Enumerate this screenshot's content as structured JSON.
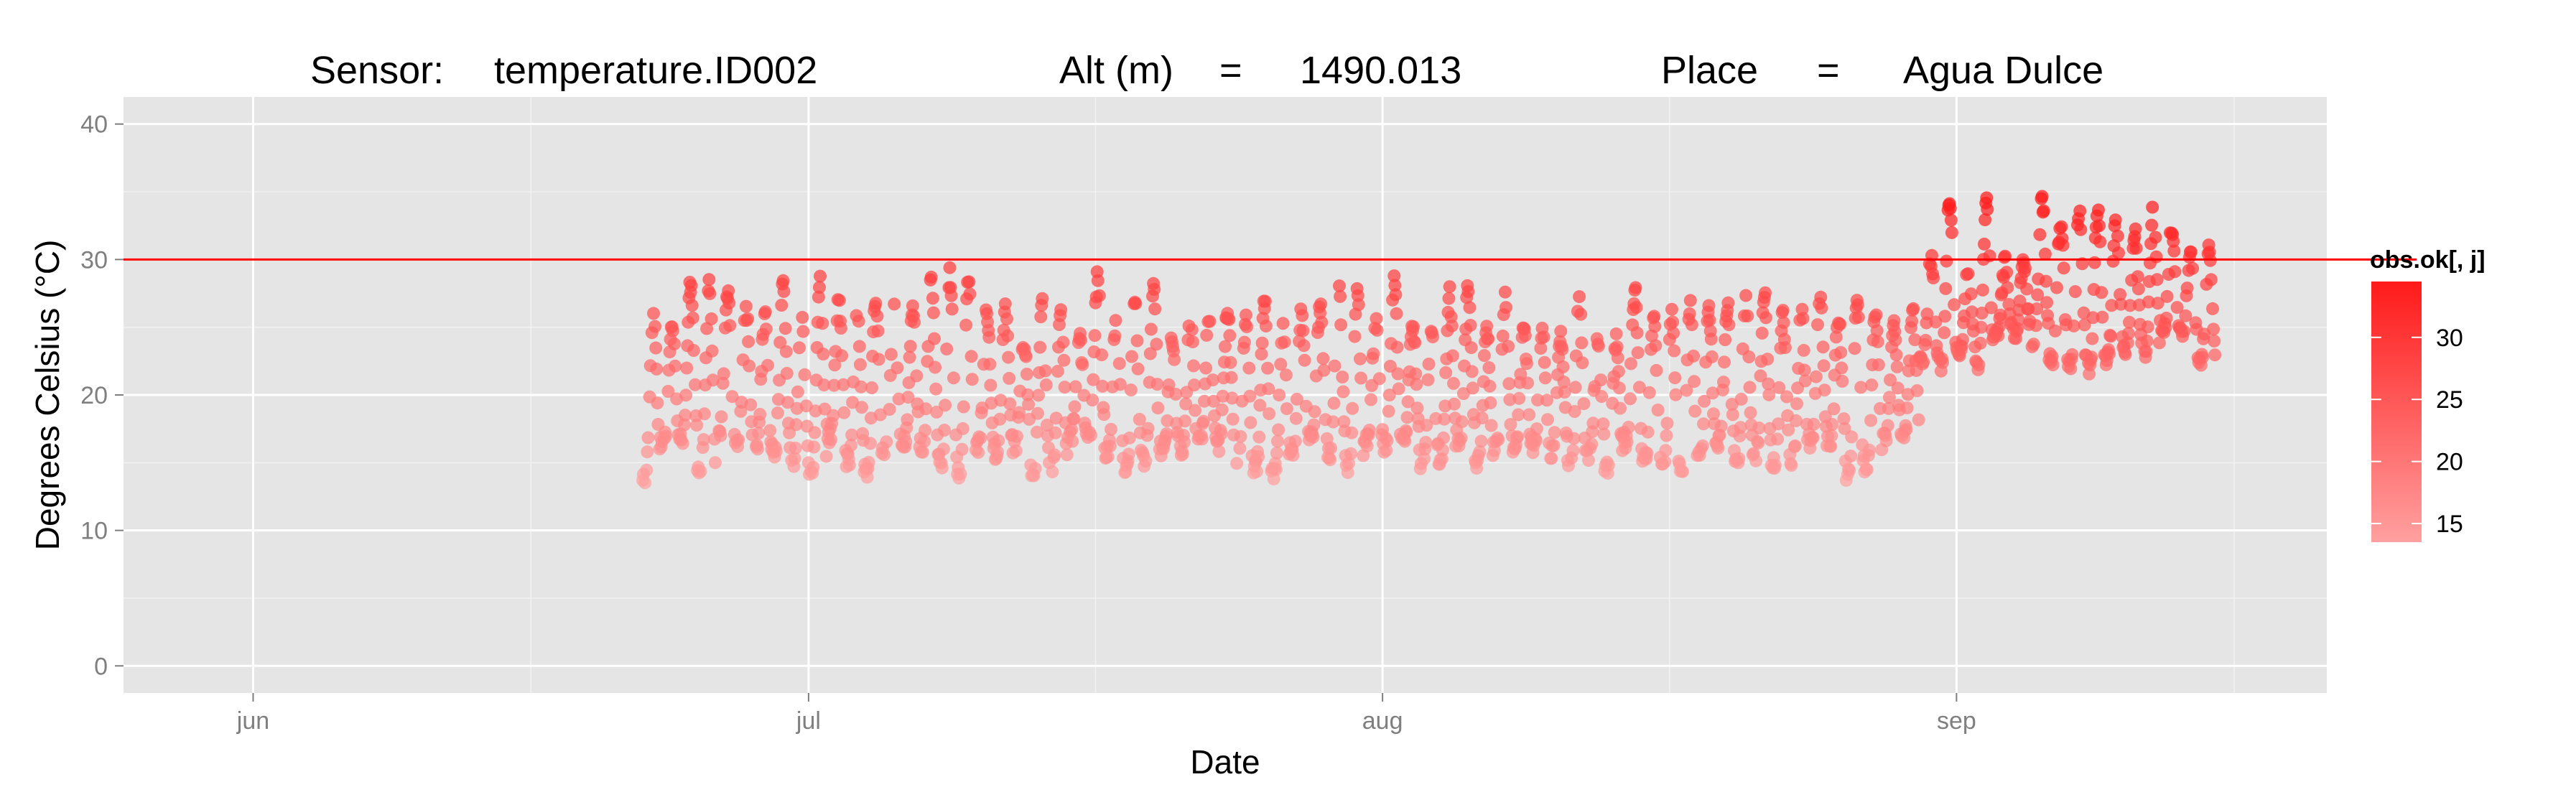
{
  "title": {
    "sensor_label": "Sensor:",
    "sensor_value": "temperature.ID002",
    "alt_label": "Alt (m)",
    "alt_eq": "=",
    "alt_value": "1490.013",
    "place_label": "Place",
    "place_eq": "=",
    "place_value": "Agua Dulce"
  },
  "colors": {
    "panel_bg": "#E5E5E5",
    "grid": "#FFFFFF",
    "threshold_line": "#FF0000",
    "point_low": "#FFA0A0",
    "point_high": "#FF1A1A"
  },
  "chart_data": {
    "type": "scatter",
    "xlabel": "Date",
    "ylabel": "Degrees Celsius (°C)",
    "x_ticks": [
      {
        "label": "jun",
        "date": "2012-06-01"
      },
      {
        "label": "jul",
        "date": "2012-07-01"
      },
      {
        "label": "aug",
        "date": "2012-08-01"
      },
      {
        "label": "sep",
        "date": "2012-09-01"
      }
    ],
    "xlim": [
      "2012-05-25",
      "2012-09-21"
    ],
    "ylim": [
      -2,
      42
    ],
    "y_ticks": [
      0,
      10,
      20,
      30,
      40
    ],
    "grid": true,
    "threshold": 30,
    "data_range": [
      "2012-06-22",
      "2012-09-15"
    ],
    "series": [
      {
        "note": "hourly temperature readings, diurnal cycle",
        "segments": [
          {
            "from": "2012-06-22",
            "to": "2012-08-30",
            "daily_min": [
              14,
              17
            ],
            "daily_max": [
              24,
              29
            ]
          },
          {
            "from": "2012-08-30",
            "to": "2012-09-15",
            "daily_min": [
              22,
              25
            ],
            "daily_max": [
              29,
              35
            ]
          }
        ]
      }
    ],
    "legend": {
      "title": "obs.ok[, j]",
      "position": "right",
      "ticks": [
        15,
        20,
        25,
        30
      ],
      "range": [
        13.5,
        34.5
      ]
    }
  }
}
